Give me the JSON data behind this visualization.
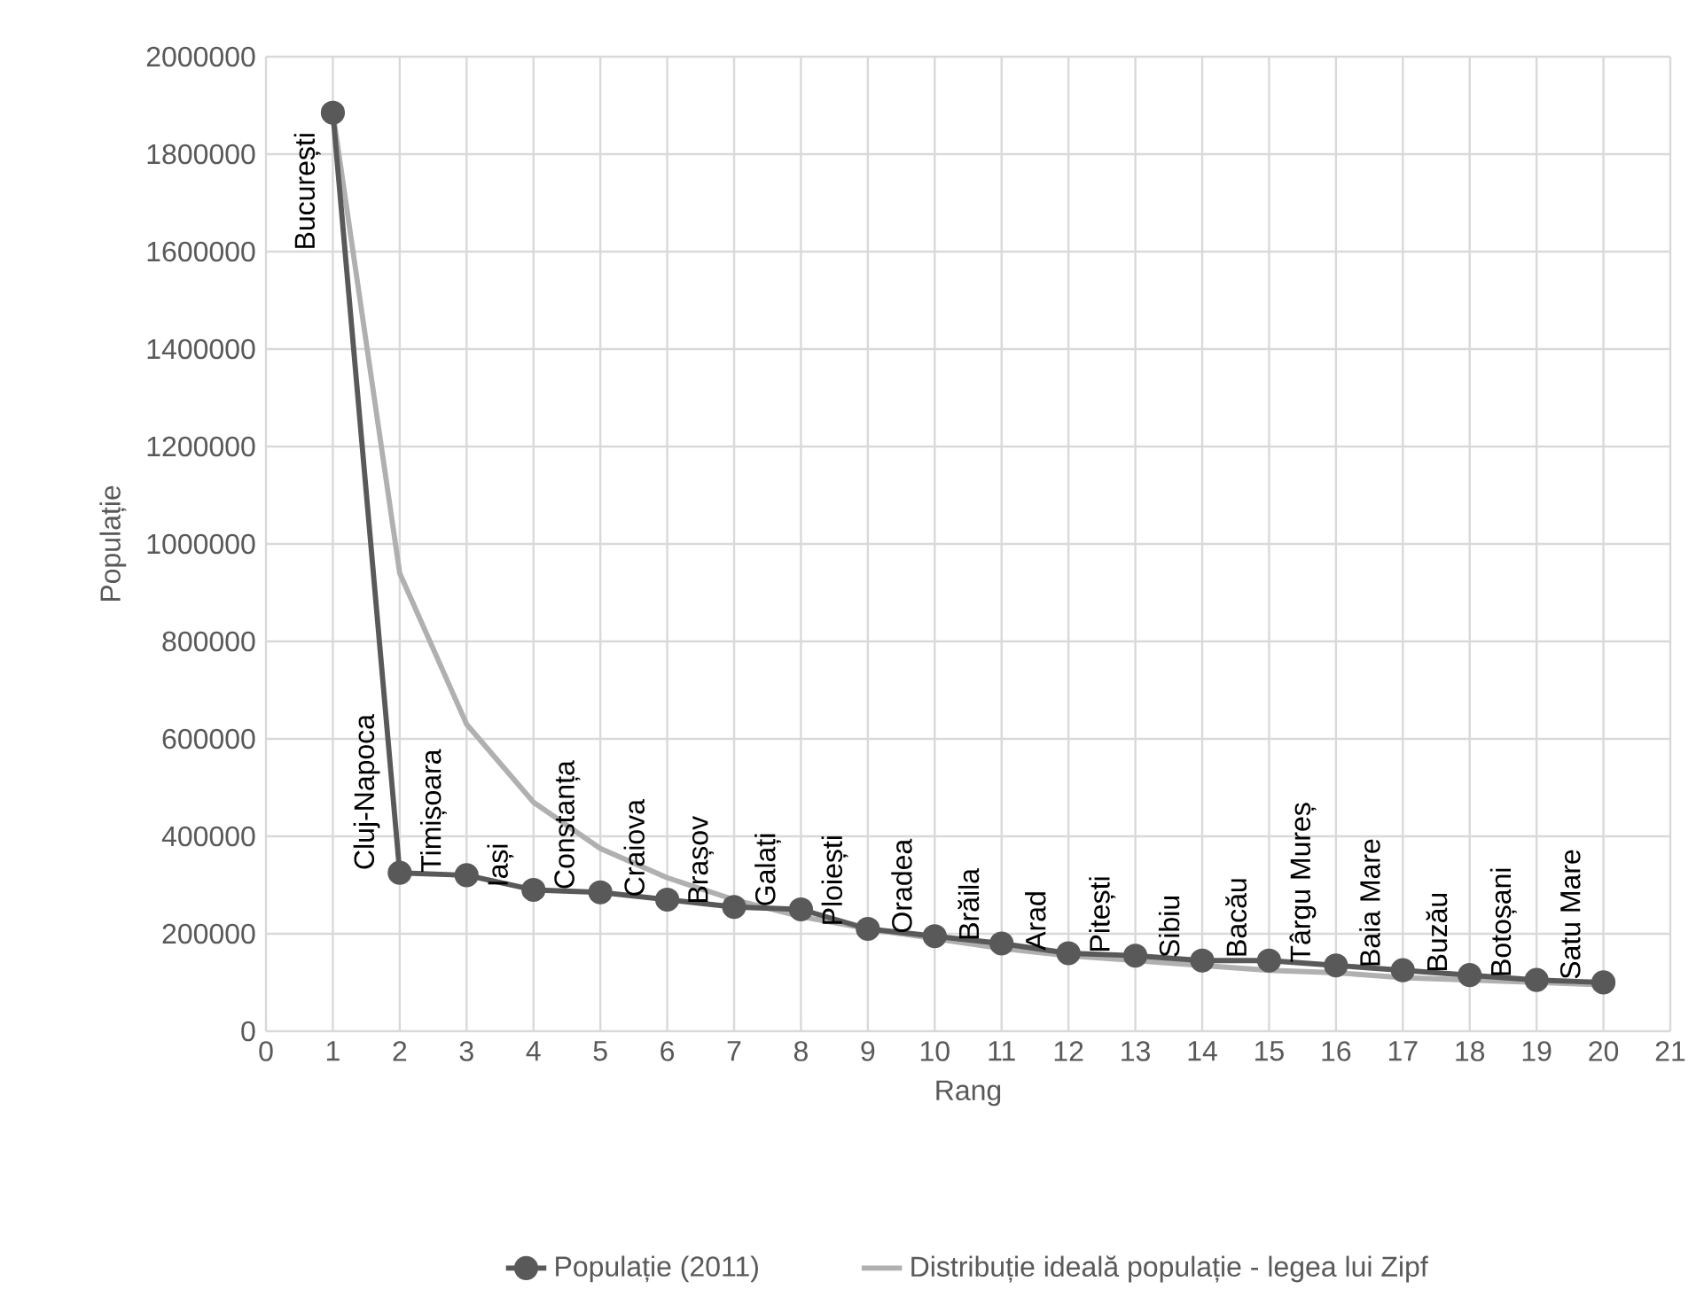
{
  "chart_data": {
    "type": "line",
    "xlabel": "Rang",
    "ylabel": "Populație",
    "x": [
      1,
      2,
      3,
      4,
      5,
      6,
      7,
      8,
      9,
      10,
      11,
      12,
      13,
      14,
      15,
      16,
      17,
      18,
      19,
      20
    ],
    "series": [
      {
        "name": "Populație (2011)",
        "color": "#595959",
        "marker": "circle",
        "values": [
          1885000,
          325000,
          320000,
          290000,
          285000,
          270000,
          255000,
          250000,
          210000,
          195000,
          180000,
          160000,
          155000,
          145000,
          145000,
          135000,
          125000,
          115000,
          105000,
          100000
        ]
      },
      {
        "name": "Distribuție ideală populație - legea lui Zipf",
        "color": "#b0b0b0",
        "marker": "none",
        "values": [
          1885000,
          940000,
          630000,
          470000,
          375000,
          315000,
          270000,
          235000,
          210000,
          190000,
          170000,
          155000,
          145000,
          135000,
          125000,
          120000,
          110000,
          105000,
          100000,
          95000
        ]
      }
    ],
    "annotations": [
      {
        "text": "București",
        "x": 1,
        "y": 1885000
      },
      {
        "text": "Cluj-Napoca",
        "x": 2,
        "y": 325000
      },
      {
        "text": "Timișoara",
        "x": 3,
        "y": 320000
      },
      {
        "text": "Iași",
        "x": 4,
        "y": 290000
      },
      {
        "text": "Constanța",
        "x": 5,
        "y": 285000
      },
      {
        "text": "Craiova",
        "x": 6,
        "y": 270000
      },
      {
        "text": "Brașov",
        "x": 7,
        "y": 255000
      },
      {
        "text": "Galați",
        "x": 8,
        "y": 250000
      },
      {
        "text": "Ploiești",
        "x": 9,
        "y": 210000
      },
      {
        "text": "Oradea",
        "x": 10,
        "y": 195000
      },
      {
        "text": "Brăila",
        "x": 11,
        "y": 180000
      },
      {
        "text": "Arad",
        "x": 12,
        "y": 160000
      },
      {
        "text": "Pitești",
        "x": 13,
        "y": 155000
      },
      {
        "text": "Sibiu",
        "x": 14,
        "y": 145000
      },
      {
        "text": "Bacău",
        "x": 15,
        "y": 145000
      },
      {
        "text": "Târgu Mureș",
        "x": 16,
        "y": 135000
      },
      {
        "text": "Baia Mare",
        "x": 17,
        "y": 125000
      },
      {
        "text": "Buzău",
        "x": 18,
        "y": 115000
      },
      {
        "text": "Botoșani",
        "x": 19,
        "y": 105000
      },
      {
        "text": "Satu Mare",
        "x": 20,
        "y": 100000
      }
    ],
    "xlim": [
      0,
      21
    ],
    "xticks": [
      0,
      1,
      2,
      3,
      4,
      5,
      6,
      7,
      8,
      9,
      10,
      11,
      12,
      13,
      14,
      15,
      16,
      17,
      18,
      19,
      20,
      21
    ],
    "ylim": [
      0,
      2000000
    ],
    "yticks": [
      0,
      200000,
      400000,
      600000,
      800000,
      1000000,
      1200000,
      1400000,
      1600000,
      1800000,
      2000000
    ],
    "grid": true,
    "legend": "bottom",
    "line_style": "solid"
  }
}
